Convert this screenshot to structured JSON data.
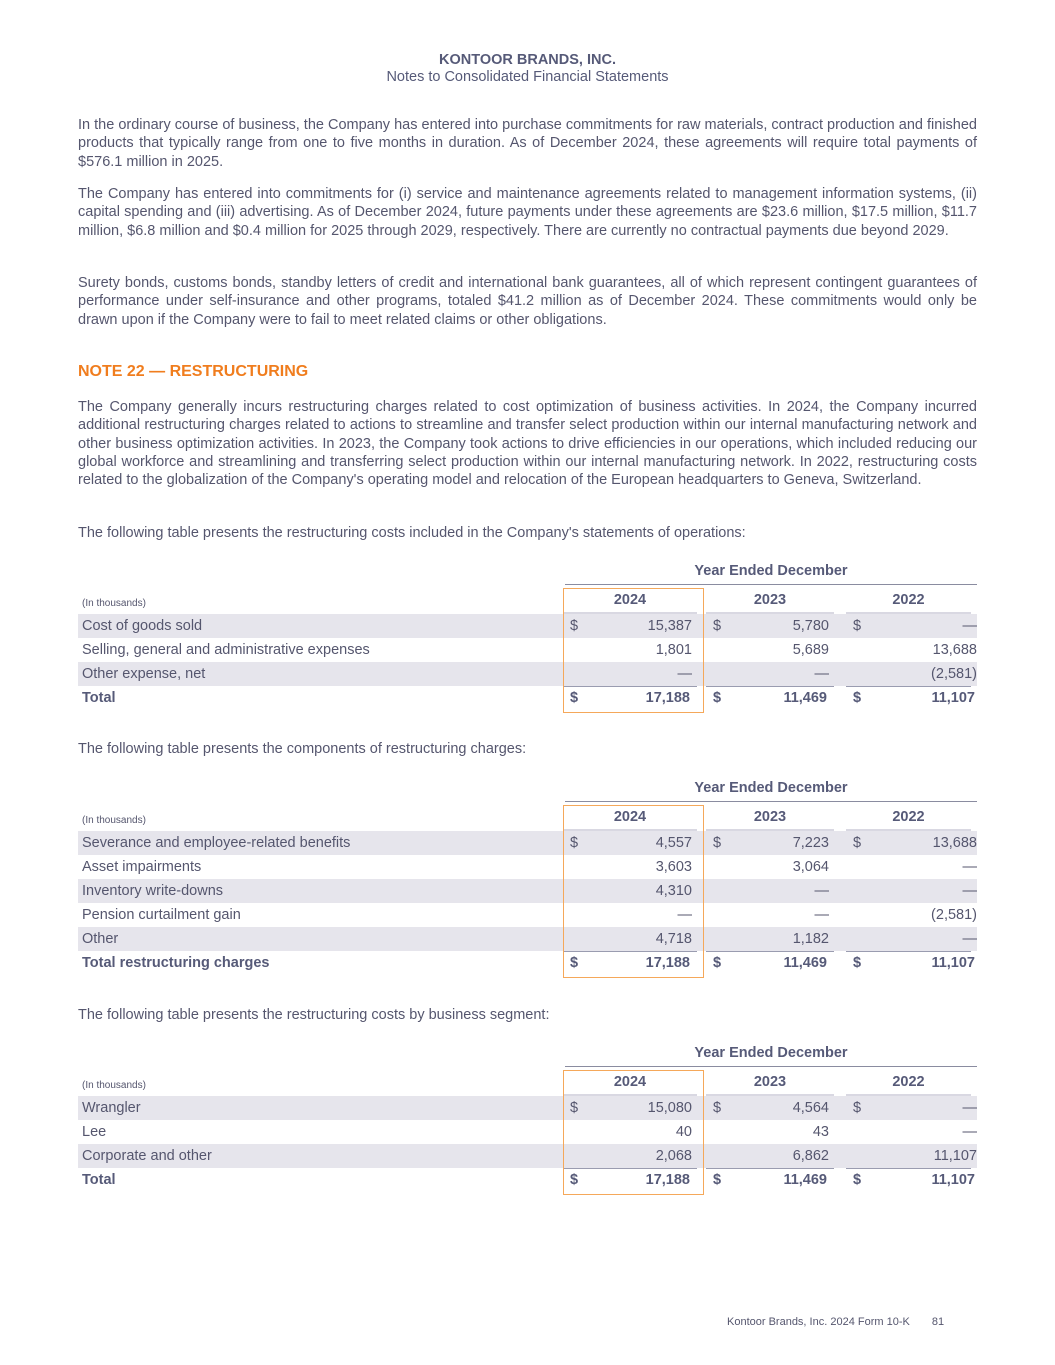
{
  "header": {
    "company": "KONTOOR BRANDS, INC.",
    "subtitle": "Notes to Consolidated Financial Statements"
  },
  "paragraphs": [
    "In the ordinary course of business, the Company has entered into purchase commitments for raw materials, contract production and finished products that typically range from one to five months in duration. As of December 2024, these agreements will require total payments of $576.1 million in 2025.",
    "The Company has entered into commitments for (i) service and maintenance agreements related to management information systems, (ii) capital spending and (iii) advertising. As of December 2024, future payments under these agreements are $23.6 million, $17.5 million, $11.7 million, $6.8 million and $0.4 million for 2025 through 2029, respectively. There are currently no contractual payments due beyond 2029.",
    "Surety bonds, customs bonds, standby letters of credit and international bank guarantees, all of which represent contingent guarantees of performance under self-insurance and other programs, totaled $41.2 million as of December 2024. These commitments would only be drawn upon if the Company were to fail to meet related claims or other obligations."
  ],
  "note_heading": "NOTE 22 — RESTRUCTURING",
  "note_paragraphs": [
    "The Company generally incurs restructuring charges related to cost optimization of business activities. In 2024, the Company incurred additional restructuring charges related to actions to streamline and transfer select production within our internal manufacturing network and other business optimization activities. In 2023, the Company took actions to drive efficiencies in our operations, which included reducing our global workforce and streamlining and transferring select production within our internal manufacturing network. In 2022, restructuring costs related to the globalization of the Company's operating model and relocation of the European headquarters to Geneva, Switzerland.",
    "The following table presents the restructuring costs included in the Company's statements of operations:",
    "The following table presents the components of restructuring charges:",
    "The following table presents the restructuring costs by business segment:"
  ],
  "tables": [
    {
      "period": "Year Ended December",
      "unit": "(In thousands)",
      "years": [
        "2024",
        "2023",
        "2022"
      ],
      "rows": [
        {
          "label": "Cost of goods sold",
          "cur": [
            "$",
            "$",
            "$"
          ],
          "values": [
            "15,387",
            "5,780",
            "—"
          ]
        },
        {
          "label": "Selling, general and administrative expenses",
          "cur": [
            "",
            "",
            ""
          ],
          "values": [
            "1,801",
            "5,689",
            "13,688"
          ]
        },
        {
          "label": "Other expense, net",
          "cur": [
            "",
            "",
            ""
          ],
          "values": [
            "—",
            "—",
            "(2,581)"
          ]
        },
        {
          "label": "Total",
          "cur": [
            "$",
            "$",
            "$"
          ],
          "values": [
            "17,188",
            "11,469",
            "11,107"
          ],
          "total": true
        }
      ]
    },
    {
      "period": "Year Ended December",
      "unit": "(In thousands)",
      "years": [
        "2024",
        "2023",
        "2022"
      ],
      "rows": [
        {
          "label": "Severance and employee-related benefits",
          "cur": [
            "$",
            "$",
            "$"
          ],
          "values": [
            "4,557",
            "7,223",
            "13,688"
          ]
        },
        {
          "label": "Asset impairments",
          "cur": [
            "",
            "",
            ""
          ],
          "values": [
            "3,603",
            "3,064",
            "—"
          ]
        },
        {
          "label": "Inventory write-downs",
          "cur": [
            "",
            "",
            ""
          ],
          "values": [
            "4,310",
            "—",
            "—"
          ]
        },
        {
          "label": "Pension curtailment gain",
          "cur": [
            "",
            "",
            ""
          ],
          "values": [
            "—",
            "—",
            "(2,581)"
          ]
        },
        {
          "label": "Other",
          "cur": [
            "",
            "",
            ""
          ],
          "values": [
            "4,718",
            "1,182",
            "—"
          ]
        },
        {
          "label": "Total restructuring charges",
          "cur": [
            "$",
            "$",
            "$"
          ],
          "values": [
            "17,188",
            "11,469",
            "11,107"
          ],
          "total": true
        }
      ]
    },
    {
      "period": "Year Ended December",
      "unit": "(In thousands)",
      "years": [
        "2024",
        "2023",
        "2022"
      ],
      "rows": [
        {
          "label": "Wrangler",
          "cur": [
            "$",
            "$",
            "$"
          ],
          "values": [
            "15,080",
            "4,564",
            "—"
          ]
        },
        {
          "label": "Lee",
          "cur": [
            "",
            "",
            ""
          ],
          "values": [
            "40",
            "43",
            "—"
          ]
        },
        {
          "label": "Corporate and other",
          "cur": [
            "",
            "",
            ""
          ],
          "values": [
            "2,068",
            "6,862",
            "11,107"
          ]
        },
        {
          "label": "Total",
          "cur": [
            "$",
            "$",
            "$"
          ],
          "values": [
            "17,188",
            "11,469",
            "11,107"
          ],
          "total": true
        }
      ]
    }
  ],
  "footer": {
    "text": "Kontoor Brands, Inc. 2024 Form 10-K",
    "page": "81"
  },
  "colors": {
    "heading": "#565a78",
    "text": "#55566e",
    "accent": "#f07d1e",
    "highlight_box": "#f5a85a",
    "row_shade": "#e6e5ec"
  }
}
